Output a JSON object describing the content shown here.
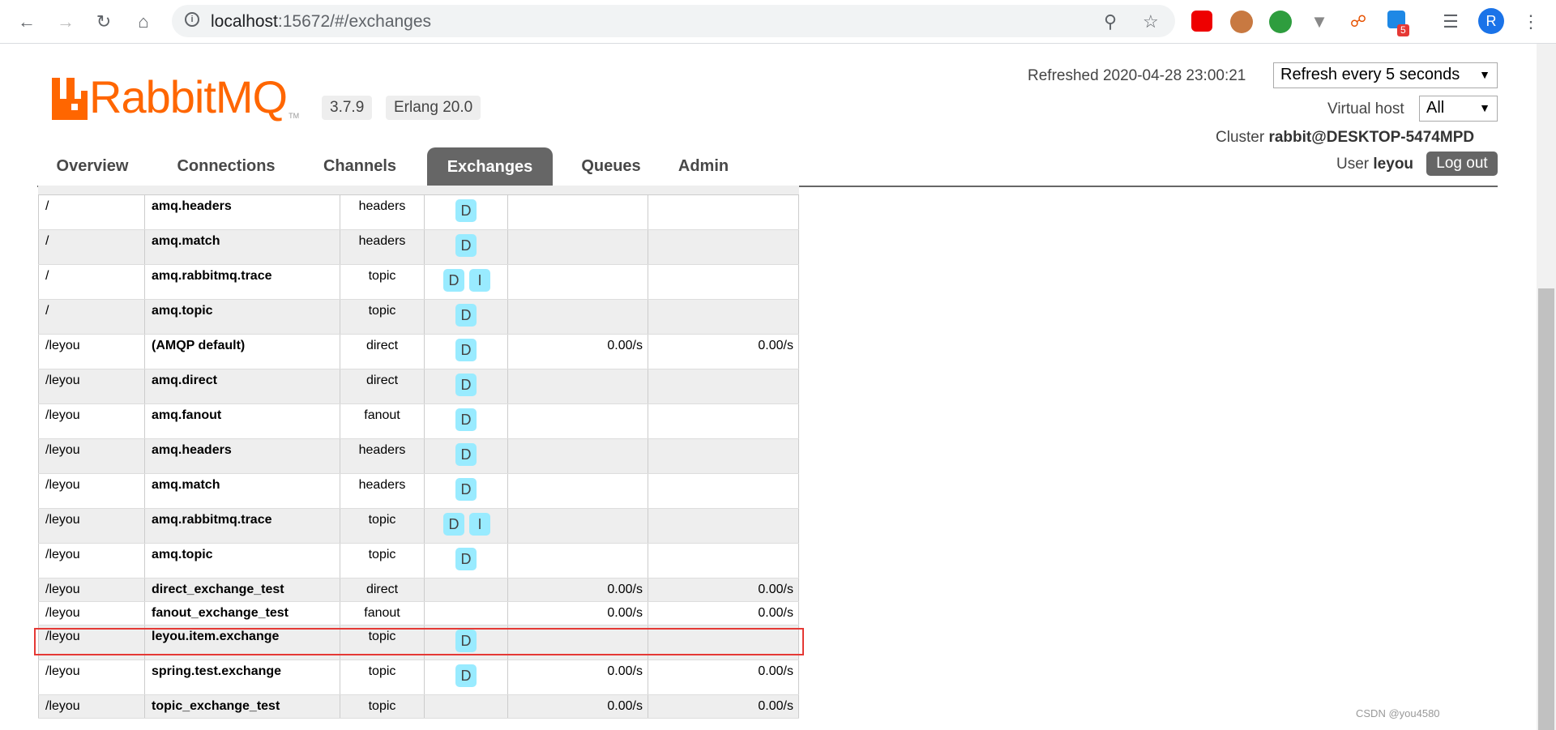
{
  "browser": {
    "url_host": "localhost",
    "url_rest": ":15672/#/exchanges",
    "avatar_letter": "R",
    "extension_badge": "5"
  },
  "header": {
    "logo_text": "RabbitMQ",
    "logo_tm": "TM",
    "version": "3.7.9",
    "erlang": "Erlang 20.0",
    "refreshed_label": "Refreshed 2020-04-28 23:00:21",
    "refresh_select": "Refresh every 5 seconds",
    "virtual_host_label": "Virtual host",
    "virtual_host_value": "All",
    "cluster_label": "Cluster",
    "cluster_value": "rabbit@DESKTOP-5474MPD",
    "user_label": "User",
    "user_value": "leyou",
    "logout_label": "Log out"
  },
  "tabs": [
    "Overview",
    "Connections",
    "Channels",
    "Exchanges",
    "Queues",
    "Admin"
  ],
  "active_tab": "Exchanges",
  "exchanges": [
    {
      "vhost": "/",
      "name": "amq.headers",
      "type": "headers",
      "features": [
        "D"
      ],
      "rate_in": "",
      "rate_out": ""
    },
    {
      "vhost": "/",
      "name": "amq.match",
      "type": "headers",
      "features": [
        "D"
      ],
      "rate_in": "",
      "rate_out": ""
    },
    {
      "vhost": "/",
      "name": "amq.rabbitmq.trace",
      "type": "topic",
      "features": [
        "D",
        "I"
      ],
      "rate_in": "",
      "rate_out": ""
    },
    {
      "vhost": "/",
      "name": "amq.topic",
      "type": "topic",
      "features": [
        "D"
      ],
      "rate_in": "",
      "rate_out": ""
    },
    {
      "vhost": "/leyou",
      "name": "(AMQP default)",
      "type": "direct",
      "features": [
        "D"
      ],
      "rate_in": "0.00/s",
      "rate_out": "0.00/s"
    },
    {
      "vhost": "/leyou",
      "name": "amq.direct",
      "type": "direct",
      "features": [
        "D"
      ],
      "rate_in": "",
      "rate_out": ""
    },
    {
      "vhost": "/leyou",
      "name": "amq.fanout",
      "type": "fanout",
      "features": [
        "D"
      ],
      "rate_in": "",
      "rate_out": ""
    },
    {
      "vhost": "/leyou",
      "name": "amq.headers",
      "type": "headers",
      "features": [
        "D"
      ],
      "rate_in": "",
      "rate_out": ""
    },
    {
      "vhost": "/leyou",
      "name": "amq.match",
      "type": "headers",
      "features": [
        "D"
      ],
      "rate_in": "",
      "rate_out": ""
    },
    {
      "vhost": "/leyou",
      "name": "amq.rabbitmq.trace",
      "type": "topic",
      "features": [
        "D",
        "I"
      ],
      "rate_in": "",
      "rate_out": ""
    },
    {
      "vhost": "/leyou",
      "name": "amq.topic",
      "type": "topic",
      "features": [
        "D"
      ],
      "rate_in": "",
      "rate_out": ""
    },
    {
      "vhost": "/leyou",
      "name": "direct_exchange_test",
      "type": "direct",
      "features": [],
      "rate_in": "0.00/s",
      "rate_out": "0.00/s"
    },
    {
      "vhost": "/leyou",
      "name": "fanout_exchange_test",
      "type": "fanout",
      "features": [],
      "rate_in": "0.00/s",
      "rate_out": "0.00/s"
    },
    {
      "vhost": "/leyou",
      "name": "leyou.item.exchange",
      "type": "topic",
      "features": [
        "D"
      ],
      "rate_in": "",
      "rate_out": ""
    },
    {
      "vhost": "/leyou",
      "name": "spring.test.exchange",
      "type": "topic",
      "features": [
        "D"
      ],
      "rate_in": "0.00/s",
      "rate_out": "0.00/s"
    },
    {
      "vhost": "/leyou",
      "name": "topic_exchange_test",
      "type": "topic",
      "features": [],
      "rate_in": "0.00/s",
      "rate_out": "0.00/s"
    }
  ],
  "highlighted_exchange": "leyou.item.exchange",
  "watermark": "CSDN @you4580",
  "colors": {
    "brand": "#ff6600",
    "feature_badge": "#99ebff",
    "highlight": "#e53935",
    "tab_active": "#666666"
  }
}
